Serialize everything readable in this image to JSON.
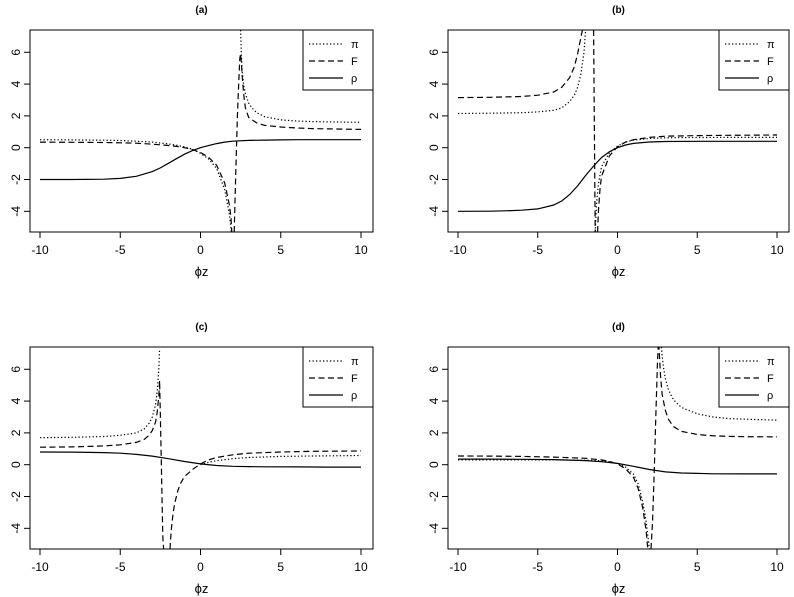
{
  "chart_data": [
    {
      "type": "line",
      "title": "(a)",
      "xlabel": "ϕz",
      "ylabel": "",
      "xlim": [
        -10,
        10
      ],
      "ylim": [
        -5.3,
        7.4
      ],
      "xticks": [
        "-10",
        "-5",
        "0",
        "5",
        "10"
      ],
      "yticks": [
        "-4",
        "-2",
        "0",
        "2",
        "4",
        "6"
      ],
      "legend_position": "top-right",
      "series": [
        {
          "name": "π",
          "style": "dotted",
          "x": [
            -10,
            -8,
            -6,
            -5,
            -4,
            -3,
            -2,
            -1.5,
            -1,
            -0.5,
            0,
            0.5,
            1,
            1.5,
            1.8,
            2,
            2.1,
            2.2,
            2.3,
            2.4,
            2.45,
            2.5,
            2.55,
            2.6,
            2.7,
            2.8,
            3,
            3.2,
            3.5,
            4,
            5,
            6,
            7,
            8,
            10
          ],
          "y": [
            0.5,
            0.49,
            0.47,
            0.45,
            0.41,
            0.35,
            0.24,
            0.16,
            0.05,
            -0.1,
            -0.35,
            -0.7,
            -1.3,
            -2.6,
            -4.2,
            -6,
            null,
            null,
            null,
            null,
            null,
            7.4,
            5.8,
            4.8,
            3.9,
            3.4,
            2.8,
            2.5,
            2.2,
            1.95,
            1.75,
            1.68,
            1.64,
            1.62,
            1.6
          ]
        },
        {
          "name": "F",
          "style": "dashed",
          "x": [
            -10,
            -8,
            -6,
            -5,
            -4,
            -3,
            -2,
            -1.5,
            -1,
            -0.5,
            0,
            0.5,
            1,
            1.5,
            1.8,
            1.9,
            1.95,
            2.0,
            2.05,
            2.1,
            2.2,
            2.3,
            2.4,
            2.45,
            2.5,
            2.55,
            2.6,
            2.7,
            2.8,
            3,
            3.5,
            4,
            5,
            6,
            7,
            8,
            10
          ],
          "y": [
            0.35,
            0.34,
            0.33,
            0.31,
            0.28,
            0.22,
            0.14,
            0.08,
            0,
            -0.12,
            -0.3,
            -0.6,
            -1.1,
            -2.2,
            -3.6,
            -4.4,
            -5.3,
            null,
            null,
            -5.3,
            -1.5,
            2.0,
            4.5,
            5.6,
            5.9,
            5.3,
            4.5,
            3.3,
            2.5,
            1.9,
            1.55,
            1.4,
            1.3,
            1.24,
            1.2,
            1.18,
            1.15
          ]
        },
        {
          "name": "ρ",
          "style": "solid",
          "x": [
            -10,
            -8,
            -6,
            -5,
            -4,
            -3,
            -2.5,
            -2,
            -1.5,
            -1,
            -0.5,
            0,
            0.5,
            1,
            1.5,
            2,
            3,
            4,
            5,
            6,
            8,
            10
          ],
          "y": [
            -2,
            -2,
            -1.98,
            -1.93,
            -1.8,
            -1.5,
            -1.27,
            -0.98,
            -0.69,
            -0.41,
            -0.18,
            0,
            0.13,
            0.26,
            0.35,
            0.41,
            0.46,
            0.48,
            0.49,
            0.5,
            0.5,
            0.5
          ]
        }
      ]
    },
    {
      "type": "line",
      "title": "(b)",
      "xlabel": "ϕz",
      "ylabel": "",
      "xlim": [
        -10,
        10
      ],
      "ylim": [
        -5.3,
        7.4
      ],
      "xticks": [
        "-10",
        "-5",
        "0",
        "5",
        "10"
      ],
      "yticks": [
        "-4",
        "-2",
        "0",
        "2",
        "4",
        "6"
      ],
      "legend_position": "top-right",
      "series": [
        {
          "name": "π",
          "style": "dotted",
          "x": [
            -10,
            -8,
            -6,
            -5,
            -4,
            -3.5,
            -3,
            -2.7,
            -2.5,
            -2.3,
            -2.1,
            -2.0,
            -1.95,
            -1.9,
            -1.85,
            -1.8,
            -1.7,
            -1.6,
            -1.55,
            -1.5,
            -1.45,
            -1.4,
            -1.35,
            -1.3,
            -1.2,
            -1,
            -0.5,
            0,
            0.5,
            1,
            2,
            3,
            5,
            7,
            10
          ],
          "y": [
            2.15,
            2.17,
            2.2,
            2.25,
            2.35,
            2.5,
            2.9,
            3.3,
            3.8,
            4.6,
            6.0,
            7.4,
            null,
            null,
            null,
            null,
            null,
            null,
            null,
            null,
            null,
            -5.3,
            -4.2,
            -3.3,
            -2.3,
            -1.2,
            -0.3,
            0.1,
            0.35,
            0.48,
            0.58,
            0.62,
            0.64,
            0.65,
            0.65
          ]
        },
        {
          "name": "F",
          "style": "dashed",
          "x": [
            -10,
            -8,
            -6,
            -5,
            -4,
            -3.5,
            -3,
            -2.7,
            -2.5,
            -2.3,
            -2.2,
            -2.15,
            -2.1,
            -2.0,
            -1.8,
            -1.6,
            -1.5,
            -1.45,
            -1.42,
            -1.4,
            -1.35,
            -1.3,
            -1.25,
            -1.2,
            -1.1,
            -1,
            -0.5,
            0,
            0.5,
            1,
            2,
            3,
            5,
            7,
            10
          ],
          "y": [
            3.15,
            3.17,
            3.22,
            3.3,
            3.5,
            3.8,
            4.4,
            5.1,
            5.9,
            6.9,
            7.4,
            null,
            null,
            null,
            null,
            null,
            7.4,
            1.0,
            -3.0,
            -5.3,
            null,
            null,
            -5.3,
            -4.0,
            -2.6,
            -1.8,
            -0.5,
            0.05,
            0.35,
            0.5,
            0.65,
            0.72,
            0.76,
            0.78,
            0.8
          ]
        },
        {
          "name": "ρ",
          "style": "solid",
          "x": [
            -10,
            -8,
            -7,
            -6,
            -5,
            -4,
            -3.5,
            -3,
            -2.5,
            -2,
            -1.5,
            -1,
            -0.5,
            0,
            0.5,
            1,
            2,
            3,
            5,
            7,
            10
          ],
          "y": [
            -4,
            -3.99,
            -3.97,
            -3.93,
            -3.85,
            -3.6,
            -3.35,
            -2.95,
            -2.4,
            -1.75,
            -1.15,
            -0.62,
            -0.25,
            0,
            0.17,
            0.27,
            0.36,
            0.39,
            0.4,
            0.4,
            0.4
          ]
        }
      ]
    },
    {
      "type": "line",
      "title": "(c)",
      "xlabel": "ϕz",
      "ylabel": "",
      "xlim": [
        -10,
        10
      ],
      "ylim": [
        -5.3,
        7.4
      ],
      "xticks": [
        "-10",
        "-5",
        "0",
        "5",
        "10"
      ],
      "yticks": [
        "-4",
        "-2",
        "0",
        "2",
        "4",
        "6"
      ],
      "legend_position": "top-right",
      "series": [
        {
          "name": "π",
          "style": "dotted",
          "x": [
            -10,
            -8,
            -6,
            -5,
            -4,
            -3.5,
            -3.2,
            -3,
            -2.8,
            -2.7,
            -2.6,
            -2.55,
            -2.5,
            -2.45,
            -2.4,
            -2.3,
            -2.2,
            -2.1,
            -2.0,
            -1.9,
            -1.8,
            -1.6,
            -1.4,
            -1.2,
            -1,
            -0.5,
            0,
            0.5,
            1,
            2,
            3,
            5,
            7,
            10
          ],
          "y": [
            1.7,
            1.72,
            1.77,
            1.85,
            2.0,
            2.25,
            2.6,
            3.0,
            3.8,
            4.6,
            6.0,
            7.3,
            null,
            null,
            null,
            null,
            null,
            null,
            null,
            null,
            null,
            null,
            null,
            null,
            null,
            null,
            0,
            0.15,
            0.25,
            0.38,
            0.45,
            0.52,
            0.55,
            0.58
          ]
        },
        {
          "name": "F",
          "style": "dashed",
          "x": [
            -10,
            -8,
            -6,
            -5,
            -4,
            -3.5,
            -3.2,
            -3,
            -2.8,
            -2.7,
            -2.6,
            -2.55,
            -2.5,
            -2.45,
            -2.4,
            -2.35,
            -2.3,
            -2.2,
            -2.1,
            -2.0,
            -1.95,
            -1.9,
            -1.85,
            -1.8,
            -1.7,
            -1.6,
            -1.4,
            -1.2,
            -1,
            -0.5,
            0,
            0.5,
            1,
            2,
            3,
            5,
            7,
            10
          ],
          "y": [
            1.1,
            1.12,
            1.18,
            1.25,
            1.4,
            1.6,
            1.85,
            2.15,
            2.7,
            3.3,
            4.3,
            5.3,
            3.0,
            0.5,
            -2.0,
            -4.5,
            -5.3,
            null,
            null,
            null,
            null,
            -5.3,
            -4.5,
            -3.9,
            -3.0,
            -2.4,
            -1.6,
            -1.1,
            -0.75,
            -0.3,
            0.05,
            0.3,
            0.45,
            0.62,
            0.72,
            0.8,
            0.84,
            0.86
          ]
        },
        {
          "name": "ρ",
          "style": "solid",
          "x": [
            -10,
            -8,
            -6,
            -5,
            -4,
            -3,
            -2,
            -1,
            0,
            1,
            2,
            3,
            4,
            6,
            8,
            10
          ],
          "y": [
            0.8,
            0.79,
            0.76,
            0.72,
            0.65,
            0.54,
            0.38,
            0.2,
            0.05,
            -0.05,
            -0.1,
            -0.12,
            -0.13,
            -0.14,
            -0.15,
            -0.15
          ]
        }
      ]
    },
    {
      "type": "line",
      "title": "(d)",
      "xlabel": "ϕz",
      "ylabel": "",
      "xlim": [
        -10,
        10
      ],
      "ylim": [
        -5.3,
        7.4
      ],
      "xticks": [
        "-10",
        "-5",
        "0",
        "5",
        "10"
      ],
      "yticks": [
        "-4",
        "-2",
        "0",
        "2",
        "4",
        "6"
      ],
      "legend_position": "top-right",
      "series": [
        {
          "name": "π",
          "style": "dotted",
          "x": [
            -10,
            -8,
            -6,
            -4,
            -2,
            -1,
            -0.5,
            0,
            0.5,
            1,
            1.3,
            1.6,
            1.8,
            2.0,
            2.2,
            2.4,
            2.6,
            2.7,
            2.75,
            2.8,
            2.9,
            3.0,
            3.2,
            3.5,
            4,
            5,
            6,
            7,
            8,
            10
          ],
          "y": [
            0.3,
            0.3,
            0.3,
            0.3,
            0.28,
            0.25,
            0.18,
            0.08,
            -0.15,
            -0.6,
            -1.2,
            -2.4,
            -3.6,
            -5.3,
            null,
            null,
            null,
            null,
            7.4,
            6.8,
            6.0,
            5.4,
            4.7,
            4.1,
            3.6,
            3.2,
            3.0,
            2.9,
            2.86,
            2.8
          ]
        },
        {
          "name": "F",
          "style": "dashed",
          "x": [
            -10,
            -8,
            -6,
            -4,
            -2,
            -1,
            -0.5,
            0,
            0.5,
            1,
            1.3,
            1.6,
            1.8,
            1.9,
            1.95,
            2.0,
            2.05,
            2.1,
            2.2,
            2.3,
            2.4,
            2.5,
            2.55,
            2.6,
            2.7,
            2.8,
            3.0,
            3.2,
            3.5,
            4,
            5,
            6,
            7,
            8,
            10
          ],
          "y": [
            0.55,
            0.54,
            0.52,
            0.48,
            0.4,
            0.3,
            0.2,
            0.05,
            -0.25,
            -0.8,
            -1.5,
            -2.8,
            -4.2,
            -5.3,
            null,
            null,
            null,
            -5.3,
            -3.5,
            -0.5,
            3.0,
            6.3,
            7.4,
            7.4,
            5.5,
            4.4,
            3.4,
            2.85,
            2.4,
            2.1,
            1.9,
            1.82,
            1.78,
            1.76,
            1.75
          ]
        },
        {
          "name": "ρ",
          "style": "solid",
          "x": [
            -10,
            -8,
            -6,
            -4,
            -2,
            -1,
            0,
            1,
            2,
            3,
            4,
            5,
            6,
            8,
            10
          ],
          "y": [
            0.35,
            0.35,
            0.34,
            0.32,
            0.26,
            0.19,
            0.08,
            -0.1,
            -0.3,
            -0.45,
            -0.52,
            -0.55,
            -0.57,
            -0.58,
            -0.58
          ]
        }
      ]
    }
  ]
}
